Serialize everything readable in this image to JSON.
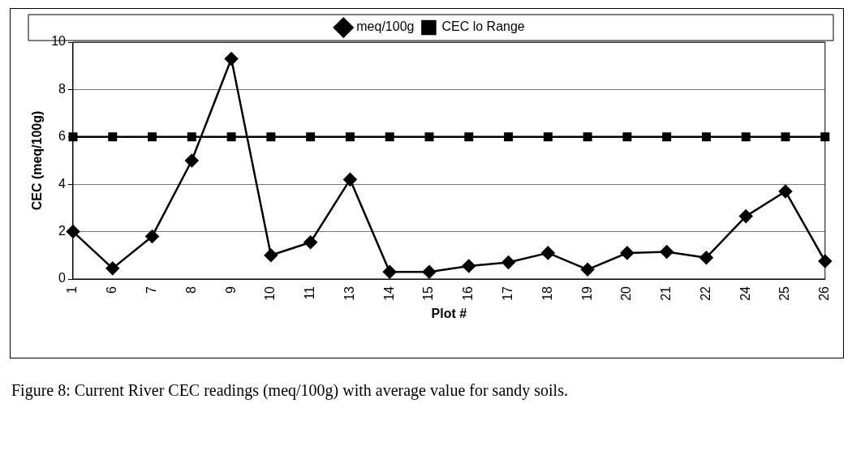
{
  "chart_data": {
    "type": "line",
    "xlabel": "Plot #",
    "ylabel": "CEC (meq/100g)",
    "categories": [
      "1",
      "6",
      "7",
      "8",
      "9",
      "10",
      "11",
      "13",
      "14",
      "15",
      "16",
      "17",
      "18",
      "19",
      "20",
      "21",
      "22",
      "24",
      "25",
      "26"
    ],
    "series": [
      {
        "name": "meq/100g",
        "color": "#000000",
        "marker": "diamond",
        "values": [
          2.0,
          0.45,
          1.8,
          5.0,
          9.3,
          1.0,
          1.55,
          4.2,
          0.3,
          0.3,
          0.55,
          0.7,
          1.1,
          0.4,
          1.1,
          1.15,
          0.9,
          2.65,
          3.7,
          0.75
        ]
      },
      {
        "name": "CEC lo Range",
        "color": "#000000",
        "marker": "square",
        "values": [
          6,
          6,
          6,
          6,
          6,
          6,
          6,
          6,
          6,
          6,
          6,
          6,
          6,
          6,
          6,
          6,
          6,
          6,
          6,
          6
        ]
      }
    ],
    "ylim": [
      0,
      10
    ],
    "yticks": [
      0,
      2,
      4,
      6,
      8,
      10
    ],
    "grid": "y",
    "legend": "top",
    "annotations": [
      "Figure 8: Current River CEC readings (meq/100g) with average value for sandy soils."
    ]
  }
}
